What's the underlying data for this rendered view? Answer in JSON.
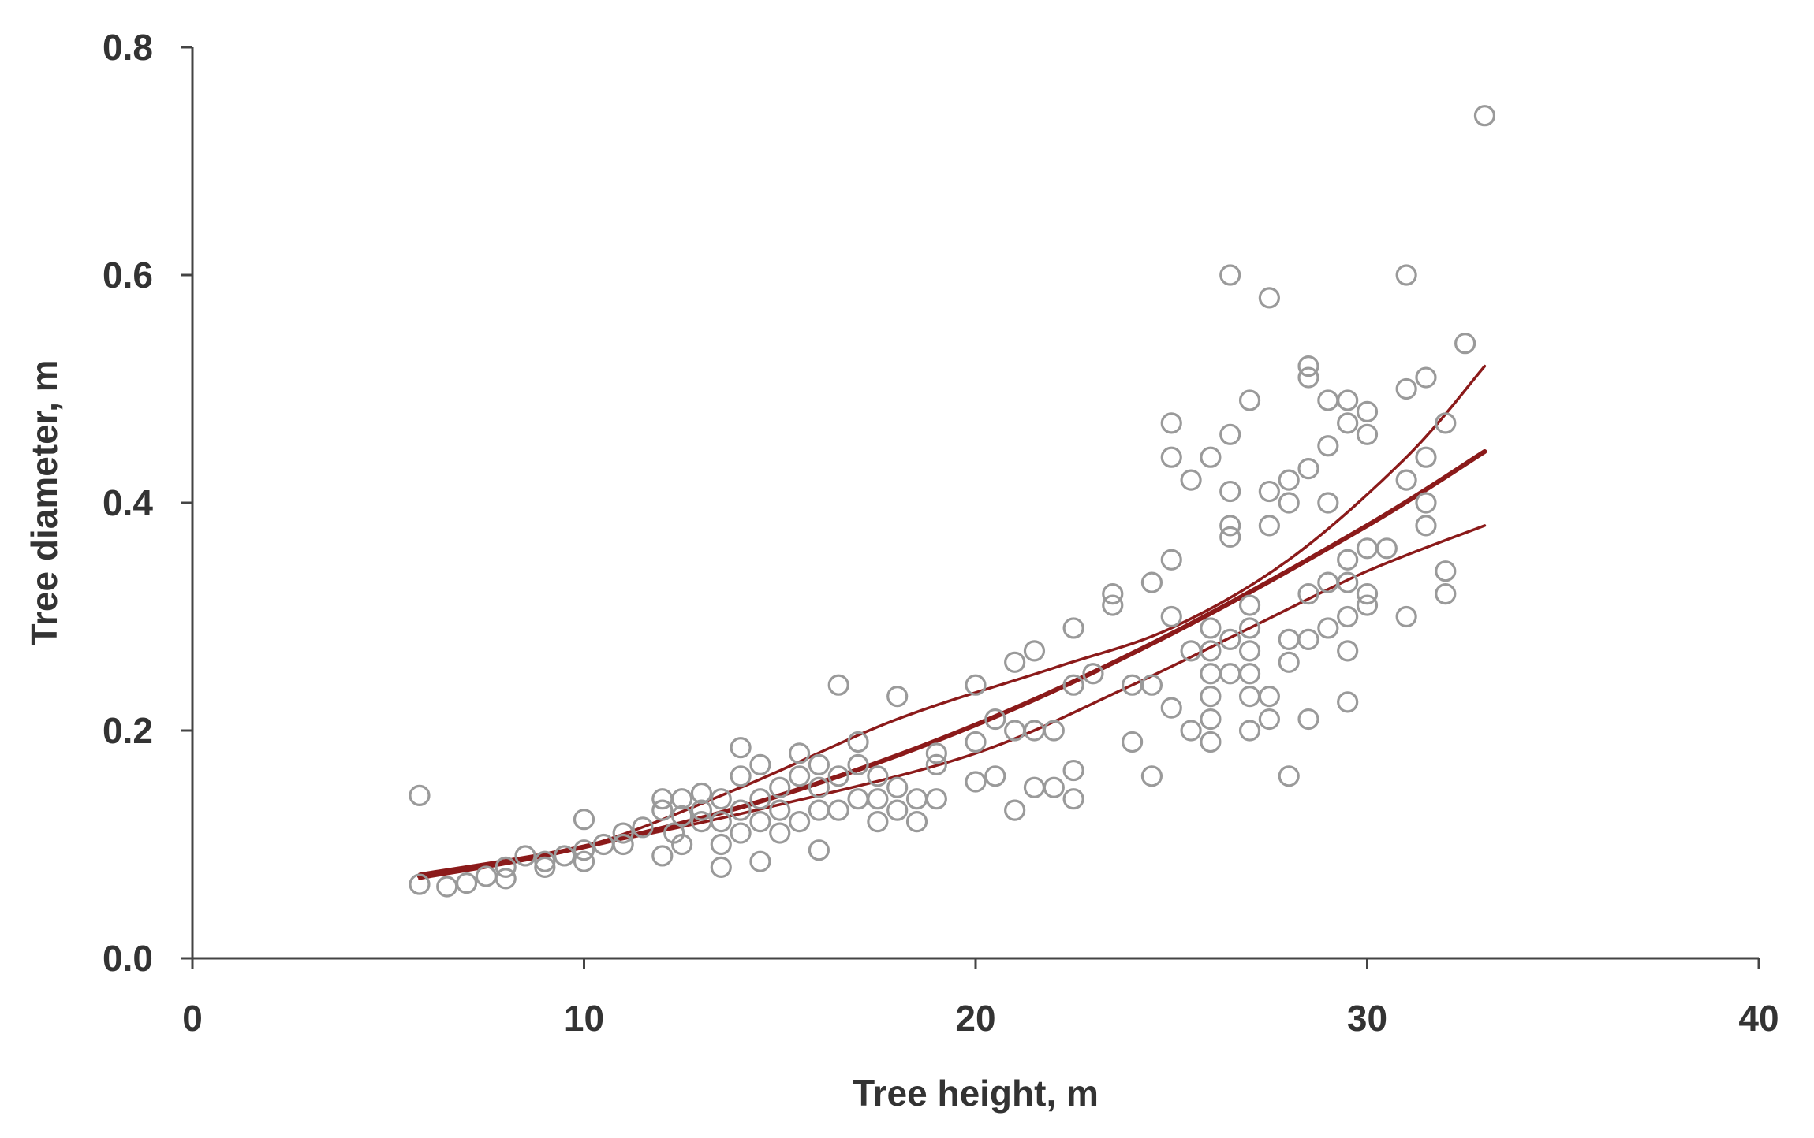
{
  "chart_data": {
    "type": "scatter",
    "xlabel": "Tree height, m",
    "ylabel": "Tree diameter, m",
    "xlim": [
      0,
      40
    ],
    "ylim": [
      0,
      0.8
    ],
    "xticks": [
      "0",
      "10",
      "20",
      "30",
      "40"
    ],
    "yticks": [
      "0.0",
      "0.2",
      "0.4",
      "0.6",
      "0.8"
    ],
    "grid": false,
    "colors": {
      "points": "#9a9a9a",
      "fit": "#8b1a1a",
      "axis": "#444444"
    },
    "series": [
      {
        "type": "scatter",
        "points": [
          [
            5.8,
            0.065
          ],
          [
            5.8,
            0.143
          ],
          [
            6.5,
            0.063
          ],
          [
            7,
            0.066
          ],
          [
            7.5,
            0.072
          ],
          [
            8,
            0.07
          ],
          [
            8,
            0.08
          ],
          [
            8.5,
            0.09
          ],
          [
            9,
            0.08
          ],
          [
            9,
            0.085
          ],
          [
            9.5,
            0.09
          ],
          [
            10,
            0.095
          ],
          [
            10,
            0.085
          ],
          [
            10.5,
            0.1
          ],
          [
            10,
            0.122
          ],
          [
            11,
            0.11
          ],
          [
            11,
            0.1
          ],
          [
            11.5,
            0.115
          ],
          [
            12,
            0.09
          ],
          [
            12,
            0.13
          ],
          [
            12,
            0.14
          ],
          [
            12.3,
            0.11
          ],
          [
            12.5,
            0.1
          ],
          [
            12.5,
            0.125
          ],
          [
            12.5,
            0.14
          ],
          [
            13,
            0.12
          ],
          [
            13,
            0.145
          ],
          [
            13,
            0.13
          ],
          [
            13.5,
            0.08
          ],
          [
            13.5,
            0.1
          ],
          [
            13.5,
            0.12
          ],
          [
            13.5,
            0.14
          ],
          [
            14,
            0.11
          ],
          [
            14,
            0.13
          ],
          [
            14,
            0.16
          ],
          [
            14,
            0.185
          ],
          [
            14.5,
            0.085
          ],
          [
            14.5,
            0.12
          ],
          [
            14.5,
            0.14
          ],
          [
            14.5,
            0.17
          ],
          [
            15,
            0.11
          ],
          [
            15,
            0.13
          ],
          [
            15,
            0.15
          ],
          [
            15.5,
            0.12
          ],
          [
            15.5,
            0.16
          ],
          [
            15.5,
            0.18
          ],
          [
            16,
            0.095
          ],
          [
            16,
            0.13
          ],
          [
            16,
            0.15
          ],
          [
            16,
            0.17
          ],
          [
            16.5,
            0.13
          ],
          [
            16.5,
            0.16
          ],
          [
            16.5,
            0.24
          ],
          [
            17,
            0.14
          ],
          [
            17,
            0.17
          ],
          [
            17,
            0.19
          ],
          [
            17.5,
            0.12
          ],
          [
            17.5,
            0.14
          ],
          [
            17.5,
            0.16
          ],
          [
            18,
            0.13
          ],
          [
            18,
            0.15
          ],
          [
            18,
            0.23
          ],
          [
            18.5,
            0.12
          ],
          [
            18.5,
            0.14
          ],
          [
            19,
            0.14
          ],
          [
            19,
            0.18
          ],
          [
            19,
            0.17
          ],
          [
            20,
            0.155
          ],
          [
            20,
            0.19
          ],
          [
            20,
            0.24
          ],
          [
            20.5,
            0.16
          ],
          [
            20.5,
            0.21
          ],
          [
            21,
            0.13
          ],
          [
            21,
            0.2
          ],
          [
            21,
            0.26
          ],
          [
            21.5,
            0.15
          ],
          [
            21.5,
            0.2
          ],
          [
            21.5,
            0.27
          ],
          [
            22,
            0.15
          ],
          [
            22,
            0.2
          ],
          [
            22.5,
            0.14
          ],
          [
            22.5,
            0.165
          ],
          [
            22.5,
            0.24
          ],
          [
            22.5,
            0.29
          ],
          [
            23,
            0.25
          ],
          [
            23.5,
            0.31
          ],
          [
            23.5,
            0.32
          ],
          [
            24,
            0.19
          ],
          [
            24,
            0.24
          ],
          [
            24.5,
            0.16
          ],
          [
            24.5,
            0.24
          ],
          [
            24.5,
            0.33
          ],
          [
            25,
            0.22
          ],
          [
            25,
            0.3
          ],
          [
            25,
            0.35
          ],
          [
            25,
            0.44
          ],
          [
            25,
            0.47
          ],
          [
            25.5,
            0.2
          ],
          [
            25.5,
            0.27
          ],
          [
            25.5,
            0.42
          ],
          [
            26,
            0.19
          ],
          [
            26,
            0.21
          ],
          [
            26,
            0.23
          ],
          [
            26,
            0.25
          ],
          [
            26,
            0.27
          ],
          [
            26,
            0.29
          ],
          [
            26,
            0.44
          ],
          [
            26.5,
            0.25
          ],
          [
            26.5,
            0.28
          ],
          [
            26.5,
            0.37
          ],
          [
            26.5,
            0.38
          ],
          [
            26.5,
            0.41
          ],
          [
            26.5,
            0.46
          ],
          [
            26.5,
            0.6
          ],
          [
            27,
            0.2
          ],
          [
            27,
            0.23
          ],
          [
            27,
            0.25
          ],
          [
            27,
            0.27
          ],
          [
            27,
            0.29
          ],
          [
            27,
            0.31
          ],
          [
            27,
            0.49
          ],
          [
            27.5,
            0.21
          ],
          [
            27.5,
            0.23
          ],
          [
            27.5,
            0.38
          ],
          [
            27.5,
            0.41
          ],
          [
            27.5,
            0.58
          ],
          [
            28,
            0.16
          ],
          [
            28,
            0.26
          ],
          [
            28,
            0.28
          ],
          [
            28,
            0.4
          ],
          [
            28,
            0.42
          ],
          [
            28.5,
            0.21
          ],
          [
            28.5,
            0.28
          ],
          [
            28.5,
            0.32
          ],
          [
            28.5,
            0.43
          ],
          [
            28.5,
            0.51
          ],
          [
            28.5,
            0.52
          ],
          [
            29,
            0.29
          ],
          [
            29,
            0.33
          ],
          [
            29,
            0.4
          ],
          [
            29,
            0.45
          ],
          [
            29,
            0.49
          ],
          [
            29.5,
            0.225
          ],
          [
            29.5,
            0.27
          ],
          [
            29.5,
            0.3
          ],
          [
            29.5,
            0.33
          ],
          [
            29.5,
            0.35
          ],
          [
            29.5,
            0.47
          ],
          [
            29.5,
            0.49
          ],
          [
            30,
            0.31
          ],
          [
            30,
            0.32
          ],
          [
            30,
            0.36
          ],
          [
            30,
            0.46
          ],
          [
            30,
            0.48
          ],
          [
            30.5,
            0.36
          ],
          [
            31,
            0.3
          ],
          [
            31,
            0.42
          ],
          [
            31,
            0.5
          ],
          [
            31,
            0.6
          ],
          [
            31.5,
            0.38
          ],
          [
            31.5,
            0.4
          ],
          [
            31.5,
            0.44
          ],
          [
            31.5,
            0.51
          ],
          [
            32,
            0.32
          ],
          [
            32,
            0.34
          ],
          [
            32,
            0.47
          ],
          [
            32.5,
            0.54
          ],
          [
            33,
            0.74
          ]
        ]
      },
      {
        "type": "line",
        "role": "fit",
        "points": [
          [
            5.8,
            0.072
          ],
          [
            10,
            0.098
          ],
          [
            15,
            0.143
          ],
          [
            20,
            0.205
          ],
          [
            25,
            0.285
          ],
          [
            30,
            0.38
          ],
          [
            33,
            0.445
          ]
        ]
      },
      {
        "type": "line",
        "role": "upper-band",
        "points": [
          [
            5.8,
            0.07
          ],
          [
            10,
            0.098
          ],
          [
            14,
            0.15
          ],
          [
            18,
            0.21
          ],
          [
            22,
            0.255
          ],
          [
            25,
            0.29
          ],
          [
            28,
            0.35
          ],
          [
            31,
            0.44
          ],
          [
            33,
            0.52
          ]
        ]
      },
      {
        "type": "line",
        "role": "lower-band",
        "points": [
          [
            5.8,
            0.074
          ],
          [
            10,
            0.098
          ],
          [
            15,
            0.135
          ],
          [
            20,
            0.18
          ],
          [
            24,
            0.24
          ],
          [
            27,
            0.29
          ],
          [
            30,
            0.34
          ],
          [
            33,
            0.38
          ]
        ]
      }
    ]
  }
}
